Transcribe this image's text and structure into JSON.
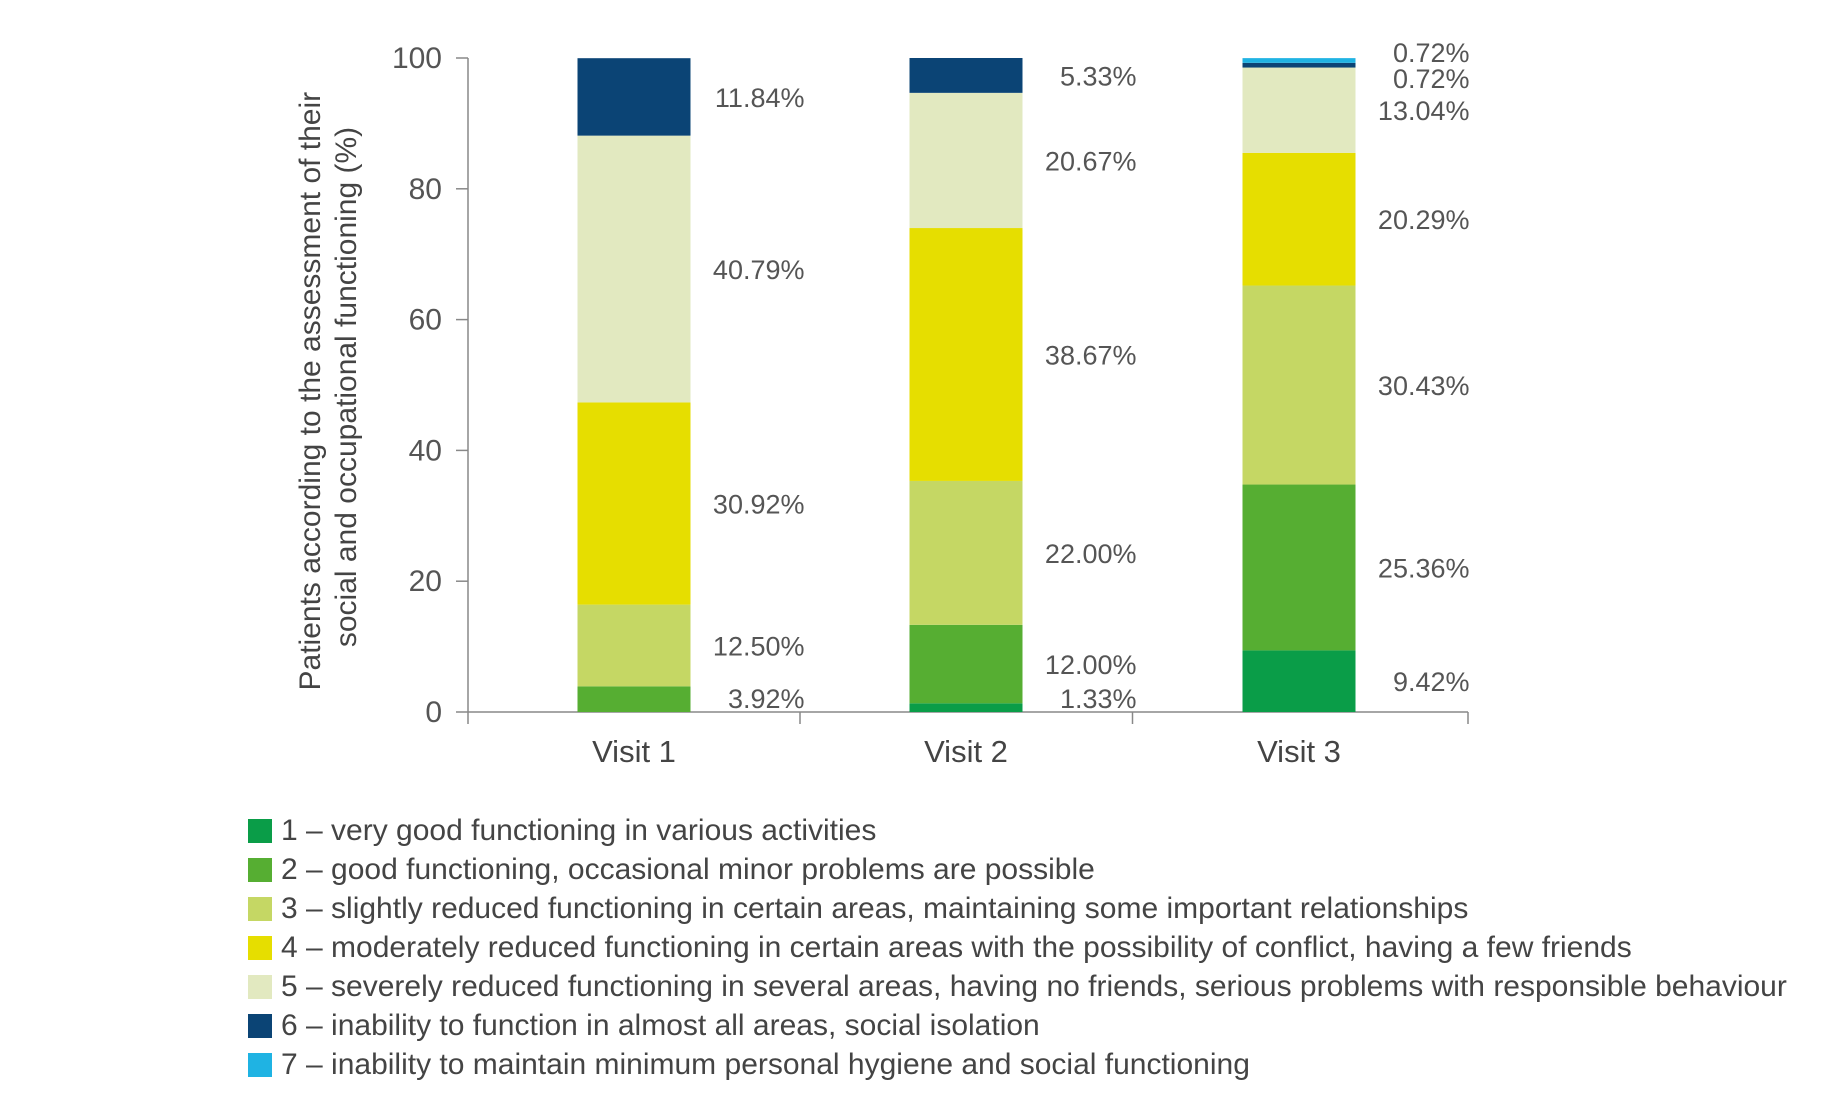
{
  "chart_data": {
    "type": "bar",
    "stacked": true,
    "ylabel_line1": "Patients according to the assessment of their",
    "ylabel_line2": "social and occupational functioning (%)",
    "ylim": [
      0,
      100
    ],
    "yticks": [
      0,
      20,
      40,
      60,
      80,
      100
    ],
    "categories": [
      "Visit 1",
      "Visit 2",
      "Visit 3"
    ],
    "series": [
      {
        "name": "1 – very good functioning in various activities",
        "color": "#0a9d48",
        "values": [
          0,
          1.33,
          9.42
        ],
        "labels": [
          "",
          "1.33%",
          "9.42%"
        ]
      },
      {
        "name": "2 – good functioning, occasional minor problems are possible",
        "color": "#56ae32",
        "values": [
          3.92,
          12.0,
          25.36
        ],
        "labels": [
          "3.92%",
          "12.00%",
          "25.36%"
        ]
      },
      {
        "name": "3 – slightly reduced functioning in certain areas, maintaining some important relationships",
        "color": "#c5d764",
        "values": [
          12.5,
          22.0,
          30.43
        ],
        "labels": [
          "12.50%",
          "22.00%",
          "30.43%"
        ]
      },
      {
        "name": "4 – moderately reduced functioning in certain areas with the possibility of conflict, having a few friends",
        "color": "#e6de00",
        "values": [
          30.92,
          38.67,
          20.29
        ],
        "labels": [
          "30.92%",
          "38.67%",
          "20.29%"
        ]
      },
      {
        "name": "5 – severely reduced functioning in several areas, having no friends, serious problems with responsible behaviour",
        "color": "#e2e9c0",
        "values": [
          40.79,
          20.67,
          13.04
        ],
        "labels": [
          "40.79%",
          "20.67%",
          "13.04%"
        ]
      },
      {
        "name": "6 – inability to function in almost all areas, social isolation",
        "color": "#0b4475",
        "values": [
          11.84,
          5.33,
          0.72
        ],
        "labels": [
          "11.84%",
          "5.33%",
          "0.72%"
        ]
      },
      {
        "name": "7 – inability to maintain minimum personal hygiene and social functioning",
        "color": "#1fb3e3",
        "values": [
          0,
          0,
          0.72
        ],
        "labels": [
          "",
          "",
          "0.72%"
        ]
      }
    ],
    "grid": false,
    "legend_position": "bottom-left"
  }
}
